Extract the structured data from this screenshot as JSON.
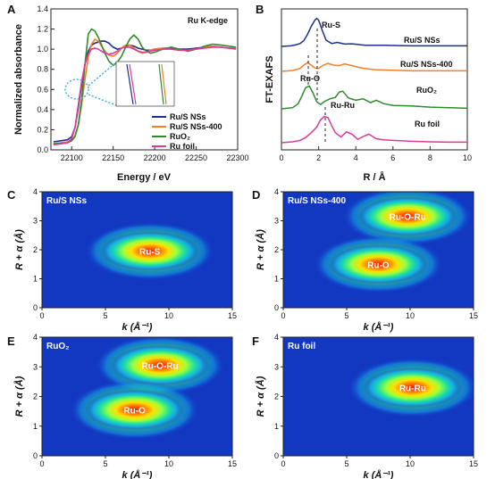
{
  "chart_data": [
    {
      "panel": "A",
      "type": "line",
      "title": "Ru K-edge",
      "xlabel": "Energy / eV",
      "ylabel": "Normalized absorbance",
      "xlim": [
        22075,
        22300
      ],
      "ylim": [
        0,
        1.4
      ],
      "xticks": [
        "22100",
        "22150",
        "22200",
        "22250",
        "22300"
      ],
      "yticks": [
        "0.0",
        "0.2",
        "0.4",
        "0.6",
        "0.8",
        "1.0",
        "1.2",
        "1.4"
      ],
      "legend_position": "right",
      "series": [
        {
          "name": "Ru/S NSs",
          "color": "#1f2f8f",
          "x": [
            22078,
            22095,
            22100,
            22104,
            22108,
            22112,
            22116,
            22120,
            22124,
            22128,
            22132,
            22136,
            22140,
            22145,
            22150,
            22155,
            22160,
            22165,
            22170,
            22175,
            22180,
            22185,
            22190,
            22195,
            22200,
            22210,
            22220,
            22230,
            22240,
            22250,
            22260,
            22270,
            22280,
            22290,
            22298
          ],
          "y": [
            0.08,
            0.1,
            0.13,
            0.22,
            0.42,
            0.65,
            0.85,
            0.98,
            1.04,
            1.06,
            1.07,
            1.08,
            1.08,
            1.06,
            1.02,
            1.0,
            1.01,
            1.03,
            1.04,
            1.03,
            1.01,
            1.0,
            0.99,
            0.99,
            1.0,
            1.01,
            1.01,
            1.0,
            1.0,
            1.01,
            1.02,
            1.03,
            1.02,
            1.01,
            1.01
          ]
        },
        {
          "name": "Ru/S NSs-400",
          "color": "#f07f2a",
          "x": [
            22078,
            22095,
            22100,
            22104,
            22108,
            22112,
            22116,
            22120,
            22124,
            22128,
            22132,
            22136,
            22140,
            22145,
            22150,
            22155,
            22160,
            22165,
            22170,
            22175,
            22180,
            22185,
            22190,
            22195,
            22200,
            22210,
            22220,
            22230,
            22240,
            22250,
            22260,
            22270,
            22280,
            22290,
            22298
          ],
          "y": [
            0.06,
            0.08,
            0.1,
            0.14,
            0.25,
            0.45,
            0.7,
            0.92,
            1.05,
            1.1,
            1.08,
            1.03,
            0.98,
            0.94,
            0.93,
            0.96,
            1.01,
            1.04,
            1.04,
            1.01,
            0.98,
            0.96,
            0.97,
            0.99,
            1.0,
            1.01,
            1.0,
            0.99,
            0.99,
            1.0,
            1.02,
            1.03,
            1.02,
            1.01,
            1.01
          ]
        },
        {
          "name": "RuO₂",
          "color": "#2e8b2e",
          "x": [
            22078,
            22095,
            22100,
            22104,
            22108,
            22112,
            22116,
            22120,
            22124,
            22128,
            22132,
            22136,
            22140,
            22145,
            22150,
            22155,
            22160,
            22165,
            22170,
            22175,
            22180,
            22185,
            22190,
            22195,
            22200,
            22210,
            22220,
            22230,
            22240,
            22250,
            22260,
            22270,
            22280,
            22290,
            22298
          ],
          "y": [
            0.06,
            0.07,
            0.09,
            0.13,
            0.25,
            0.5,
            0.85,
            1.15,
            1.2,
            1.18,
            1.12,
            1.04,
            0.96,
            0.88,
            0.84,
            0.87,
            0.93,
            1.02,
            1.1,
            1.14,
            1.1,
            1.02,
            0.98,
            0.96,
            0.97,
            1.0,
            1.02,
            1.0,
            0.98,
            1.0,
            1.03,
            1.05,
            1.04,
            1.03,
            1.02
          ]
        },
        {
          "name": "Ru foil",
          "color": "#e0399c",
          "x": [
            22078,
            22095,
            22100,
            22104,
            22108,
            22112,
            22116,
            22120,
            22124,
            22128,
            22132,
            22136,
            22140,
            22145,
            22150,
            22155,
            22160,
            22165,
            22170,
            22175,
            22180,
            22185,
            22190,
            22195,
            22200,
            22210,
            22220,
            22230,
            22240,
            22250,
            22260,
            22270,
            22280,
            22290,
            22298
          ],
          "y": [
            0.05,
            0.07,
            0.11,
            0.22,
            0.45,
            0.68,
            0.85,
            0.95,
            1.0,
            1.01,
            1.0,
            0.98,
            0.96,
            0.95,
            0.96,
            0.98,
            1.01,
            1.02,
            1.02,
            1.0,
            0.98,
            0.97,
            0.97,
            0.98,
            0.99,
            1.0,
            1.0,
            0.99,
            0.99,
            1.0,
            1.01,
            1.02,
            1.02,
            1.01,
            1.0
          ]
        }
      ]
    },
    {
      "panel": "B",
      "type": "line",
      "title": "",
      "xlabel": "R / Å",
      "ylabel": "FT-EXAFS",
      "xlim": [
        0,
        10
      ],
      "xticks": [
        "0",
        "2",
        "4",
        "6",
        "8",
        "10"
      ],
      "series": [
        {
          "name": "Ru/S NSs",
          "color": "#1f2f8f",
          "offset": 3.0,
          "x": [
            0,
            0.5,
            0.8,
            1.0,
            1.2,
            1.4,
            1.6,
            1.8,
            1.9,
            2.0,
            2.2,
            2.4,
            2.7,
            3.0,
            3.4,
            3.8,
            4.5,
            5.5,
            7,
            8.5,
            10
          ],
          "y": [
            0,
            0.02,
            0.06,
            0.1,
            0.2,
            0.42,
            0.7,
            0.92,
            0.98,
            0.92,
            0.55,
            0.22,
            0.1,
            0.14,
            0.08,
            0.09,
            0.04,
            0.04,
            0.02,
            0.02,
            0.02
          ]
        },
        {
          "name": "Ru/S NSs-400",
          "color": "#f07f2a",
          "offset": 2.0,
          "x": [
            0,
            0.6,
            1.0,
            1.2,
            1.4,
            1.6,
            1.8,
            2.0,
            2.2,
            2.5,
            2.8,
            3.1,
            3.4,
            3.8,
            4.3,
            5,
            6,
            7,
            8.5,
            10
          ],
          "y": [
            0,
            0.03,
            0.1,
            0.22,
            0.3,
            0.22,
            0.12,
            0.1,
            0.2,
            0.28,
            0.22,
            0.2,
            0.26,
            0.2,
            0.12,
            0.06,
            0.04,
            0.02,
            0.02,
            0.02
          ]
        },
        {
          "name": "RuO₂",
          "color": "#2e8b2e",
          "offset": 1.0,
          "x": [
            0,
            0.6,
            0.9,
            1.1,
            1.3,
            1.5,
            1.7,
            1.9,
            2.1,
            2.3,
            2.6,
            2.9,
            3.1,
            3.3,
            3.6,
            4.0,
            4.4,
            4.8,
            5.1,
            5.5,
            6,
            7,
            8,
            9,
            10
          ],
          "y": [
            0,
            0.04,
            0.18,
            0.45,
            0.74,
            0.8,
            0.55,
            0.25,
            0.15,
            0.25,
            0.35,
            0.4,
            0.58,
            0.62,
            0.38,
            0.3,
            0.35,
            0.22,
            0.3,
            0.18,
            0.12,
            0.1,
            0.06,
            0.04,
            0.02
          ]
        },
        {
          "name": "Ru foil",
          "color": "#e0399c",
          "offset": 0.0,
          "x": [
            0,
            0.6,
            1.0,
            1.3,
            1.6,
            1.9,
            2.1,
            2.3,
            2.5,
            2.7,
            2.9,
            3.2,
            3.5,
            3.8,
            4.1,
            4.4,
            4.7,
            5.1,
            5.5,
            6,
            7,
            8,
            9,
            10
          ],
          "y": [
            0,
            0.03,
            0.08,
            0.18,
            0.35,
            0.55,
            0.8,
            0.92,
            0.88,
            0.6,
            0.35,
            0.2,
            0.38,
            0.3,
            0.12,
            0.22,
            0.3,
            0.14,
            0.1,
            0.08,
            0.05,
            0.03,
            0.02,
            0.02
          ]
        }
      ],
      "annotations": [
        "Ru-S",
        "Ru-O",
        "Ru-Ru"
      ]
    },
    {
      "panel": "C",
      "type": "heatmap",
      "title": "Ru/S NSs",
      "xlabel": "k (Å⁻¹)",
      "ylabel": "R + α (Å)",
      "xlim": [
        0,
        15
      ],
      "ylim": [
        0,
        4
      ],
      "xticks": [
        "0",
        "5",
        "10",
        "15"
      ],
      "yticks": [
        "0",
        "1",
        "2",
        "3",
        "4"
      ],
      "blobs": [
        {
          "label": "Ru-S",
          "k": 8.5,
          "r": 1.95
        }
      ]
    },
    {
      "panel": "D",
      "type": "heatmap",
      "title": "Ru/S NSs-400",
      "xlabel": "k (Å⁻¹)",
      "ylabel": "R + α (Å)",
      "xlim": [
        0,
        15
      ],
      "ylim": [
        0,
        4
      ],
      "xticks": [
        "0",
        "5",
        "10",
        "15"
      ],
      "yticks": [
        "0",
        "1",
        "2",
        "3",
        "4"
      ],
      "blobs": [
        {
          "label": "Ru-O-Ru",
          "k": 9.8,
          "r": 3.15
        },
        {
          "label": "Ru-O",
          "k": 7.5,
          "r": 1.5
        }
      ]
    },
    {
      "panel": "E",
      "type": "heatmap",
      "title": "RuO₂",
      "xlabel": "k (Å⁻¹)",
      "ylabel": "R + α (Å)",
      "xlim": [
        0,
        15
      ],
      "ylim": [
        0,
        4
      ],
      "xticks": [
        "0",
        "5",
        "10",
        "15"
      ],
      "yticks": [
        "0",
        "1",
        "2",
        "3",
        "4"
      ],
      "blobs": [
        {
          "label": "Ru-O-Ru",
          "k": 9.3,
          "r": 3.05
        },
        {
          "label": "Ru-O",
          "k": 7.3,
          "r": 1.55
        }
      ]
    },
    {
      "panel": "F",
      "type": "heatmap",
      "title": "Ru foil",
      "xlabel": "k (Å⁻¹)",
      "ylabel": "R + α (Å)",
      "xlim": [
        0,
        15
      ],
      "ylim": [
        0,
        4
      ],
      "xticks": [
        "0",
        "5",
        "10",
        "15"
      ],
      "yticks": [
        "0",
        "1",
        "2",
        "3",
        "4"
      ],
      "blobs": [
        {
          "label": "Ru-Ru",
          "k": 10.2,
          "r": 2.3
        }
      ]
    }
  ]
}
